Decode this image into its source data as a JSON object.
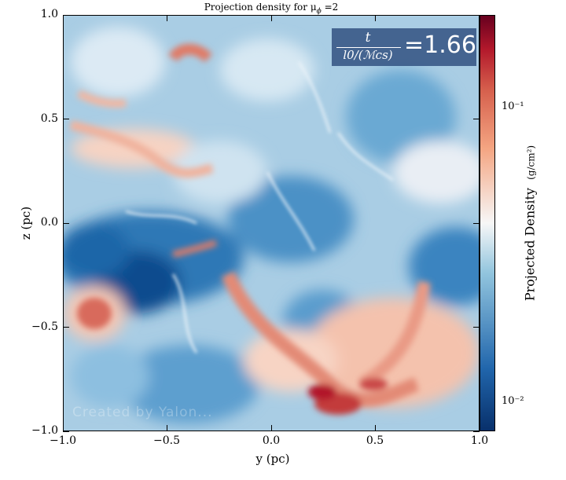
{
  "title": "Projection density for μ",
  "title_sub": "ϕ",
  "title_suffix": " =2",
  "time_stamp": {
    "numerator": "t",
    "denominator": "l0/(ℳcs)",
    "equals_value": "=1.66"
  },
  "x_axis": {
    "label": "y  (pc)",
    "ticks": [
      "−1.0",
      "−0.5",
      "0.0",
      "0.5",
      "1.0"
    ]
  },
  "y_axis": {
    "label": "z  (pc)",
    "ticks": [
      "1.0",
      "0.5",
      "0.0",
      "−0.5",
      "−1.0"
    ]
  },
  "colorbar": {
    "label": "Projected Density",
    "units": "(g/cm²)",
    "ticks": [
      "10⁻¹",
      "10⁻²"
    ],
    "colors": {
      "low": "#08306b",
      "mid": "#f7f7f7",
      "high": "#67001f"
    }
  },
  "watermark": "Created by Yalon..."
}
